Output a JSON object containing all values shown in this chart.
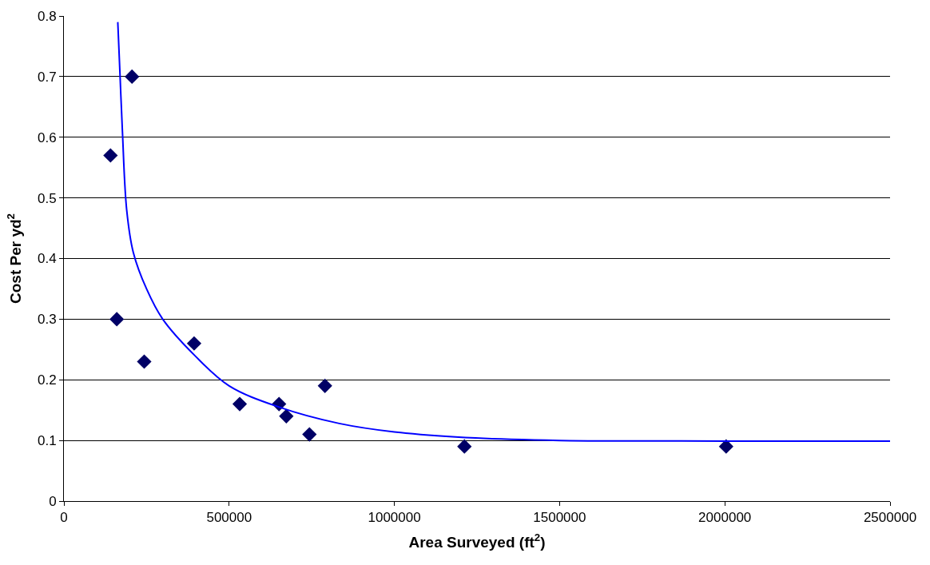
{
  "chart_data": {
    "type": "scatter",
    "xlabel": "Area Surveyed (ft$^{2}$)",
    "ylabel": "Cost Per yd$^{2}$",
    "xlim": [
      0,
      2500000
    ],
    "xticks": [
      0,
      500000,
      1000000,
      1500000,
      2000000,
      2500000
    ],
    "ylim": [
      0,
      0.8
    ],
    "yticks": [
      0,
      0.1,
      0.2,
      0.3,
      0.4,
      0.5,
      0.6,
      0.7,
      0.8
    ],
    "grid": "y",
    "series": [
      {
        "marker": "diamond",
        "color": "#000066",
        "x": [
          141000,
          206000,
          160000,
          243000,
          394000,
          532000,
          651000,
          673000,
          743000,
          790000,
          1212000,
          2004000
        ],
        "values": [
          0.57,
          0.7,
          0.3,
          0.23,
          0.26,
          0.16,
          0.16,
          0.14,
          0.11,
          0.19,
          0.09,
          0.09
        ]
      },
      {
        "type": "line",
        "marker": "none",
        "line_style": "solid",
        "color": "#0000ff",
        "x": [
          163000,
          170000,
          177000,
          190000,
          210000,
          250000,
          299000,
          396000,
          500000,
          651000,
          833000,
          1000000,
          1246000,
          1500000,
          2000000,
          2500000
        ],
        "values": [
          0.79,
          0.7,
          0.61,
          0.48,
          0.41,
          0.35,
          0.3,
          0.24,
          0.19,
          0.155,
          0.128,
          0.114,
          0.104,
          0.1,
          0.099,
          0.099
        ]
      }
    ]
  }
}
